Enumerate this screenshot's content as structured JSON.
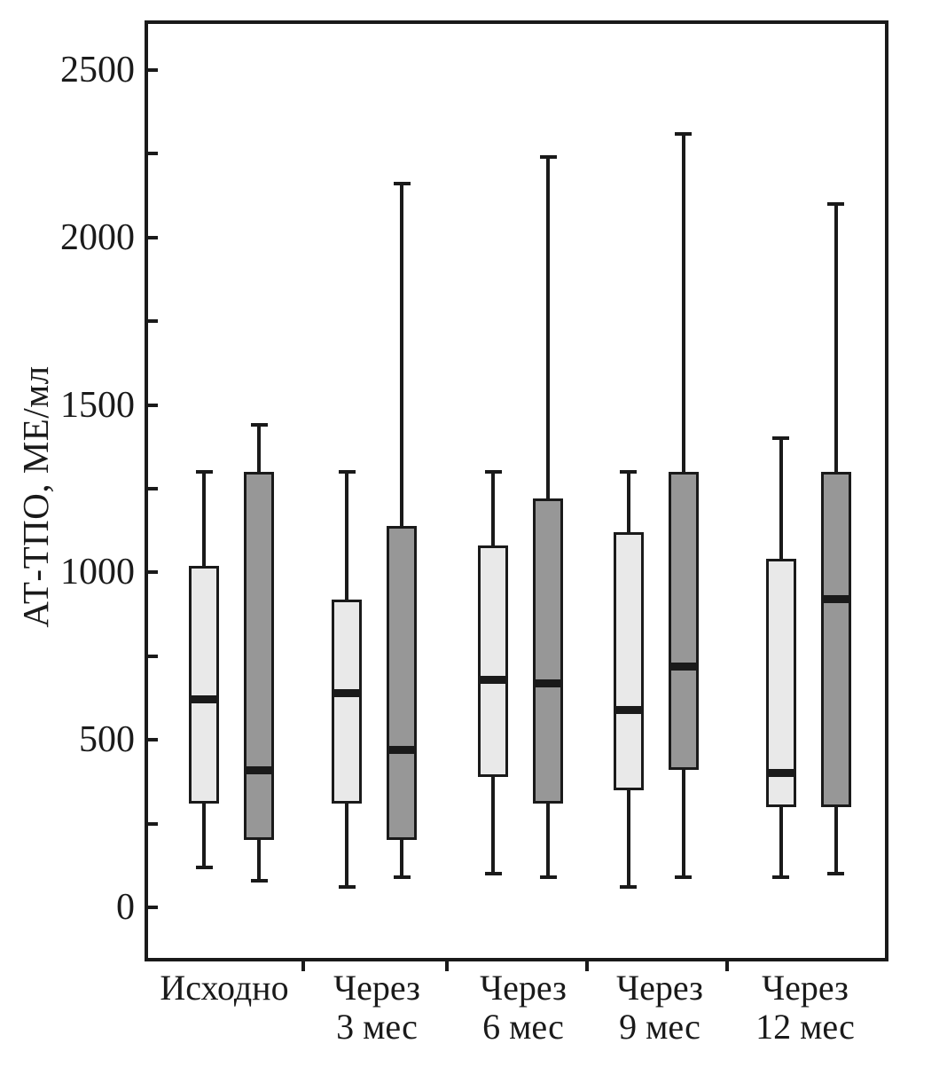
{
  "figure": {
    "background": "#ffffff",
    "line_color": "#1a1a1a"
  },
  "chart_data": {
    "type": "boxplot",
    "title": "",
    "ylabel": "АТ-ТПО, МЕ/мл",
    "xlabel": "",
    "ylim": [
      0,
      2500
    ],
    "yticks_labeled": [
      0,
      500,
      1000,
      1500,
      2000,
      2500
    ],
    "ytick_minor_step": 250,
    "grid": false,
    "legend": null,
    "categories": [
      "Исходно",
      "Через 3 мес",
      "Через 6 мес",
      "Через 9 мес",
      "Через 12 мес"
    ],
    "category_label_lines": [
      [
        "Исходно"
      ],
      [
        "Через",
        "3 мес"
      ],
      [
        "Через",
        "6 мес"
      ],
      [
        "Через",
        "9 мес"
      ],
      [
        "Через",
        "12 мес"
      ]
    ],
    "series": [
      {
        "name": "light-gray-series",
        "fill": "#e9e9e9",
        "boxes": [
          {
            "min": 120,
            "q1": 310,
            "median": 620,
            "q3": 1020,
            "max": 1300
          },
          {
            "min": 60,
            "q1": 310,
            "median": 640,
            "q3": 920,
            "max": 1300
          },
          {
            "min": 100,
            "q1": 390,
            "median": 680,
            "q3": 1080,
            "max": 1300
          },
          {
            "min": 60,
            "q1": 350,
            "median": 590,
            "q3": 1120,
            "max": 1300
          },
          {
            "min": 90,
            "q1": 300,
            "median": 400,
            "q3": 1040,
            "max": 1400
          }
        ]
      },
      {
        "name": "dark-gray-series",
        "fill": "#979797",
        "boxes": [
          {
            "min": 80,
            "q1": 200,
            "median": 410,
            "q3": 1300,
            "max": 1440
          },
          {
            "min": 90,
            "q1": 200,
            "median": 470,
            "q3": 1140,
            "max": 2160
          },
          {
            "min": 90,
            "q1": 310,
            "median": 670,
            "q3": 1220,
            "max": 2240
          },
          {
            "min": 90,
            "q1": 410,
            "median": 720,
            "q3": 1300,
            "max": 2310
          },
          {
            "min": 100,
            "q1": 300,
            "median": 920,
            "q3": 1300,
            "max": 2100
          }
        ]
      }
    ]
  }
}
